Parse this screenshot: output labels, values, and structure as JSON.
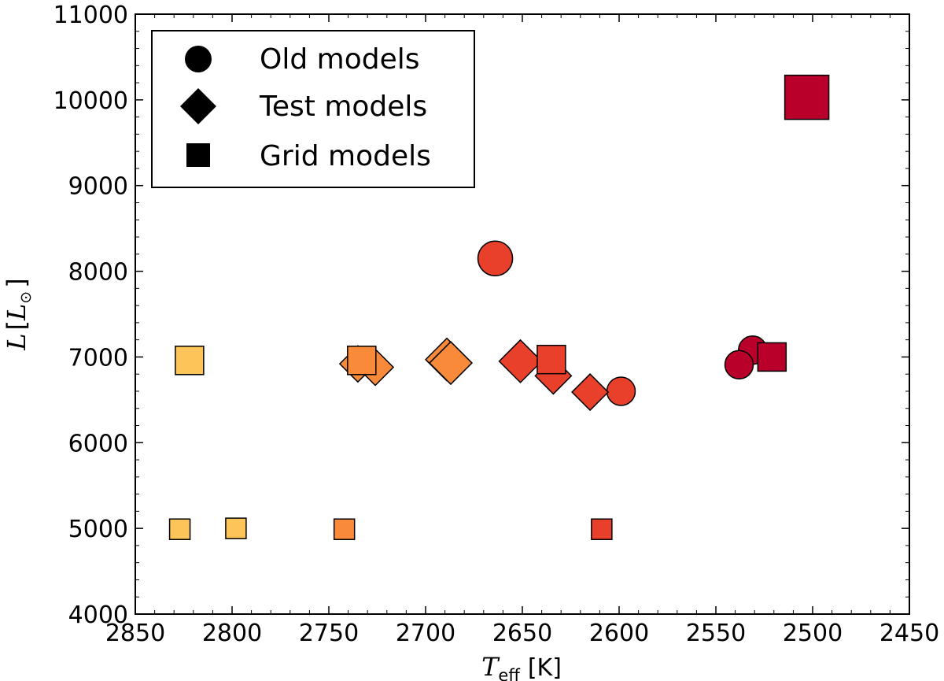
{
  "chart_data": {
    "type": "scatter",
    "title": "",
    "xlabel": {
      "symbol": "T",
      "subscript": "eff",
      "unit": "[K]"
    },
    "ylabel": {
      "symbol": "L",
      "bracket_open": "[",
      "subsymbol": "L",
      "sun_symbol": "⊙",
      "bracket_close": "]"
    },
    "xlim": [
      2850,
      2450
    ],
    "ylim": [
      4000,
      11000
    ],
    "x_inverted": true,
    "xticks": [
      2850,
      2800,
      2750,
      2700,
      2650,
      2600,
      2550,
      2500,
      2450
    ],
    "yticks": [
      4000,
      5000,
      6000,
      7000,
      8000,
      9000,
      10000,
      11000
    ],
    "legend": {
      "placement": "top-left",
      "entries": [
        {
          "marker": "circle",
          "label": "Old models"
        },
        {
          "marker": "diamond",
          "label": "Test models"
        },
        {
          "marker": "square",
          "label": "Grid models"
        }
      ]
    },
    "series": [
      {
        "name": "Old models",
        "marker": "circle",
        "points": [
          {
            "x": 2664,
            "y": 8150,
            "size": "large",
            "color": "#e8402a"
          },
          {
            "x": 2599,
            "y": 6600,
            "size": "medium",
            "color": "#e8402a"
          },
          {
            "x": 2531,
            "y": 7080,
            "size": "medium",
            "color": "#b8002b"
          },
          {
            "x": 2538,
            "y": 6910,
            "size": "medium",
            "color": "#b8002b"
          }
        ]
      },
      {
        "name": "Test models",
        "marker": "diamond",
        "points": [
          {
            "x": 2735,
            "y": 6920,
            "size": "medium",
            "color": "#f98a3a"
          },
          {
            "x": 2726,
            "y": 6880,
            "size": "medium",
            "color": "#f98a3a"
          },
          {
            "x": 2689,
            "y": 6970,
            "size": "large",
            "color": "#f98a3a"
          },
          {
            "x": 2687,
            "y": 6930,
            "size": "large",
            "color": "#f98a3a"
          },
          {
            "x": 2651,
            "y": 6950,
            "size": "large",
            "color": "#e8402a"
          },
          {
            "x": 2634,
            "y": 6780,
            "size": "medium",
            "color": "#e8402a"
          },
          {
            "x": 2615,
            "y": 6590,
            "size": "medium",
            "color": "#e8402a"
          }
        ]
      },
      {
        "name": "Grid models",
        "marker": "square",
        "points": [
          {
            "x": 2822,
            "y": 6960,
            "size": "medium",
            "color": "#fdc45a"
          },
          {
            "x": 2733,
            "y": 6960,
            "size": "medium",
            "color": "#f98a3a"
          },
          {
            "x": 2635,
            "y": 6970,
            "size": "medium",
            "color": "#e8402a"
          },
          {
            "x": 2521,
            "y": 7000,
            "size": "medium",
            "color": "#b8002b"
          },
          {
            "x": 2503,
            "y": 10030,
            "size": "large",
            "color": "#b8002b"
          },
          {
            "x": 2827,
            "y": 4990,
            "size": "small",
            "color": "#fdc45a"
          },
          {
            "x": 2798,
            "y": 5000,
            "size": "small",
            "color": "#fdc45a"
          },
          {
            "x": 2742,
            "y": 4990,
            "size": "small",
            "color": "#f98a3a"
          },
          {
            "x": 2609,
            "y": 4990,
            "size": "small",
            "color": "#e8402a"
          }
        ]
      }
    ]
  }
}
